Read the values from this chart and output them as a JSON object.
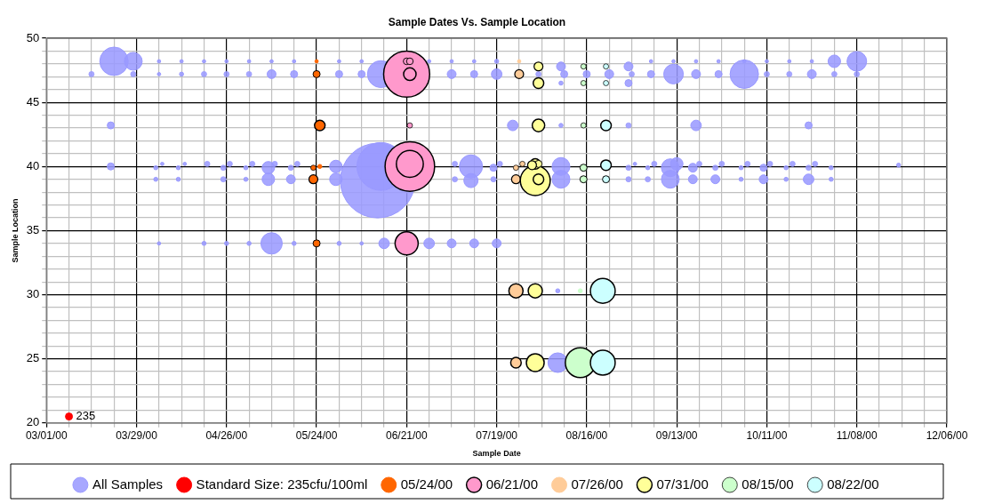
{
  "chart_data": {
    "type": "bubble",
    "title": "Sample Dates Vs. Sample Location",
    "xlabel": "Sample Date",
    "ylabel": "Sample Location",
    "xlim": [
      "2000-03-01",
      "2000-12-06"
    ],
    "xticks": [
      {
        "value": "2000-03-01",
        "label": "03/01/00"
      },
      {
        "value": "2000-03-08",
        "label": null
      },
      {
        "value": "2000-03-15",
        "label": null
      },
      {
        "value": "2000-03-22",
        "label": null
      },
      {
        "value": "2000-03-29",
        "label": "03/29/00"
      },
      {
        "value": "2000-04-05",
        "label": null
      },
      {
        "value": "2000-04-12",
        "label": null
      },
      {
        "value": "2000-04-19",
        "label": null
      },
      {
        "value": "2000-04-26",
        "label": "04/26/00"
      },
      {
        "value": "2000-05-03",
        "label": null
      },
      {
        "value": "2000-05-10",
        "label": null
      },
      {
        "value": "2000-05-17",
        "label": null
      },
      {
        "value": "2000-05-24",
        "label": "05/24/00"
      },
      {
        "value": "2000-05-31",
        "label": null
      },
      {
        "value": "2000-06-07",
        "label": null
      },
      {
        "value": "2000-06-14",
        "label": null
      },
      {
        "value": "2000-06-21",
        "label": "06/21/00"
      },
      {
        "value": "2000-06-28",
        "label": null
      },
      {
        "value": "2000-07-05",
        "label": null
      },
      {
        "value": "2000-07-12",
        "label": null
      },
      {
        "value": "2000-07-19",
        "label": "07/19/00"
      },
      {
        "value": "2000-07-26",
        "label": null
      },
      {
        "value": "2000-08-02",
        "label": null
      },
      {
        "value": "2000-08-09",
        "label": null
      },
      {
        "value": "2000-08-16",
        "label": "08/16/00"
      },
      {
        "value": "2000-08-23",
        "label": null
      },
      {
        "value": "2000-08-30",
        "label": null
      },
      {
        "value": "2000-09-06",
        "label": null
      },
      {
        "value": "2000-09-13",
        "label": "09/13/00"
      },
      {
        "value": "2000-09-20",
        "label": null
      },
      {
        "value": "2000-09-27",
        "label": null
      },
      {
        "value": "2000-10-04",
        "label": null
      },
      {
        "value": "2000-10-11",
        "label": "10/11/00"
      },
      {
        "value": "2000-10-18",
        "label": null
      },
      {
        "value": "2000-10-25",
        "label": null
      },
      {
        "value": "2000-11-01",
        "label": null
      },
      {
        "value": "2000-11-08",
        "label": "11/08/00"
      },
      {
        "value": "2000-11-15",
        "label": null
      },
      {
        "value": "2000-11-22",
        "label": null
      },
      {
        "value": "2000-11-29",
        "label": null
      },
      {
        "value": "2000-12-06",
        "label": "12/06/00"
      }
    ],
    "ylim": [
      20,
      50
    ],
    "yticks": [
      20,
      {
        "value": 21,
        "label": null
      },
      {
        "value": 22,
        "label": null
      },
      {
        "value": 23,
        "label": null
      },
      {
        "value": 24,
        "label": null
      },
      25,
      {
        "value": 26,
        "label": null
      },
      {
        "value": 27,
        "label": null
      },
      {
        "value": 28,
        "label": null
      },
      {
        "value": 29,
        "label": null
      },
      30,
      {
        "value": 31,
        "label": null
      },
      {
        "value": 32,
        "label": null
      },
      {
        "value": 33,
        "label": null
      },
      {
        "value": 34,
        "label": null
      },
      35,
      {
        "value": 36,
        "label": null
      },
      {
        "value": 37,
        "label": null
      },
      {
        "value": 38,
        "label": null
      },
      {
        "value": 39,
        "label": null
      },
      40,
      {
        "value": 41,
        "label": null
      },
      {
        "value": 42,
        "label": null
      },
      {
        "value": 43,
        "label": null
      },
      {
        "value": 44,
        "label": null
      },
      45,
      {
        "value": 46,
        "label": null
      },
      {
        "value": 47,
        "label": null
      },
      {
        "value": 48,
        "label": null
      },
      {
        "value": 49,
        "label": null
      },
      50
    ],
    "grid": true,
    "legend": "bottom",
    "annotations": [
      {
        "text": "235",
        "x": "2000-03-08",
        "y": 20.5
      }
    ],
    "series": [
      {
        "name": "All Samples",
        "color": "#9999ff",
        "x": [
          "2000-06-12",
          "2000-06-13",
          "2000-03-22",
          "2000-03-28",
          "2000-04-05",
          "2000-04-12",
          "2000-04-19",
          "2000-04-26",
          "2000-05-03",
          "2000-05-10",
          "2000-05-17",
          "2000-05-31",
          "2000-06-07",
          "2000-06-28",
          "2000-07-05",
          "2000-07-12",
          "2000-07-19",
          "2000-09-05",
          "2000-09-12",
          "2000-09-19",
          "2000-09-26",
          "2000-10-04",
          "2000-10-11",
          "2000-10-18",
          "2000-10-25",
          "2000-11-01",
          "2000-11-08",
          "2000-03-15",
          "2000-03-28",
          "2000-04-05",
          "2000-04-12",
          "2000-04-19",
          "2000-04-26",
          "2000-05-03",
          "2000-05-10",
          "2000-05-17",
          "2000-05-31",
          "2000-06-07",
          "2000-06-13",
          "2000-07-05",
          "2000-07-12",
          "2000-07-19",
          "2000-08-01",
          "2000-08-09",
          "2000-08-16",
          "2000-08-23",
          "2000-08-30",
          "2000-09-05",
          "2000-09-12",
          "2000-09-19",
          "2000-09-26",
          "2000-10-04",
          "2000-10-11",
          "2000-10-18",
          "2000-10-25",
          "2000-11-01",
          "2000-11-08",
          "2000-08-08",
          "2000-08-29",
          "2000-08-08",
          "2000-08-29",
          "2000-03-21",
          "2000-07-24",
          "2000-08-08",
          "2000-08-29",
          "2000-09-19",
          "2000-10-24",
          "2000-03-21",
          "2000-05-30",
          "2000-07-11",
          "2000-08-08",
          "2000-11-21",
          "2000-04-04",
          "2000-04-11",
          "2000-04-25",
          "2000-05-02",
          "2000-05-09",
          "2000-05-16",
          "2000-07-18",
          "2000-08-29",
          "2000-09-04",
          "2000-09-11",
          "2000-09-18",
          "2000-09-25",
          "2000-10-03",
          "2000-10-10",
          "2000-10-17",
          "2000-10-24",
          "2000-10-31",
          "2000-04-06",
          "2000-04-13",
          "2000-04-20",
          "2000-04-27",
          "2000-05-04",
          "2000-05-11",
          "2000-05-18",
          "2000-07-06",
          "2000-07-20",
          "2000-08-31",
          "2000-09-06",
          "2000-09-13",
          "2000-09-20",
          "2000-09-27",
          "2000-10-05",
          "2000-10-12",
          "2000-10-19",
          "2000-10-26",
          "2000-04-04",
          "2000-04-11",
          "2000-04-25",
          "2000-05-02",
          "2000-05-09",
          "2000-05-16",
          "2000-05-30",
          "2000-07-06",
          "2000-07-11",
          "2000-07-18",
          "2000-08-08",
          "2000-08-29",
          "2000-09-04",
          "2000-09-11",
          "2000-09-18",
          "2000-09-25",
          "2000-10-03",
          "2000-10-10",
          "2000-10-17",
          "2000-10-24",
          "2000-10-31",
          "2000-04-05",
          "2000-04-19",
          "2000-04-26",
          "2000-05-03",
          "2000-05-10",
          "2000-05-17",
          "2000-05-31",
          "2000-06-07",
          "2000-06-14",
          "2000-06-28",
          "2000-07-05",
          "2000-07-12",
          "2000-07-19",
          "2000-08-07",
          "2000-08-07"
        ],
        "values": [
          38.9,
          40,
          48.2,
          48.2,
          48.2,
          48.2,
          48.2,
          48.2,
          48.2,
          48.2,
          48.2,
          48.2,
          48.2,
          48.2,
          48.2,
          48.2,
          48.2,
          48.2,
          48.2,
          48.2,
          48.2,
          48.2,
          48.2,
          48.2,
          48.2,
          48.2,
          48.2,
          47.2,
          47.2,
          47.2,
          47.2,
          47.2,
          47.2,
          47.2,
          47.2,
          47.2,
          47.2,
          47.2,
          47.2,
          47.2,
          47.2,
          47.2,
          47.2,
          47.2,
          47.2,
          47.2,
          47.2,
          47.2,
          47.2,
          47.2,
          47.2,
          47.2,
          47.2,
          47.2,
          47.2,
          47.2,
          47.2,
          47.8,
          47.8,
          46.5,
          46.5,
          43.2,
          43.2,
          43.2,
          43.2,
          43.2,
          43.2,
          40,
          40,
          40,
          40,
          40.1,
          39.9,
          39.9,
          39.9,
          39.9,
          39.9,
          39.9,
          39.9,
          39.9,
          39.9,
          39.9,
          39.9,
          39.9,
          39.9,
          39.9,
          39.9,
          39.9,
          39.9,
          40.2,
          40.2,
          40.2,
          40.2,
          40.2,
          40.2,
          40.2,
          40.2,
          40.2,
          40.2,
          40.2,
          40.2,
          40.2,
          40.2,
          40.2,
          40.2,
          40.2,
          40.2,
          39,
          39,
          39,
          39,
          39,
          39,
          39,
          39,
          38.9,
          39,
          39,
          39,
          39,
          39,
          39,
          39,
          39,
          39,
          39,
          39,
          39,
          34,
          34,
          34,
          34,
          34,
          34,
          34,
          34,
          34,
          34,
          34,
          34,
          34,
          30.3,
          24.7
        ],
        "sizes": [
          1,
          0.41,
          0.145,
          0.057,
          0.002,
          0.002,
          0.002,
          0.002,
          0.002,
          0.002,
          0.002,
          0.002,
          0.002,
          0.002,
          0.002,
          0.002,
          0.003,
          0.002,
          0.002,
          0.002,
          0.002,
          0.002,
          0.002,
          0.002,
          0.002,
          0.028,
          0.069,
          0.005,
          0.005,
          0.002,
          0.003,
          0.005,
          0.005,
          0.005,
          0.014,
          0.009,
          0.009,
          0.009,
          0.13,
          0.014,
          0.009,
          0.02,
          0.005,
          0.009,
          0.009,
          0.014,
          0.005,
          0.009,
          0.069,
          0.014,
          0.009,
          0.145,
          0.005,
          0.005,
          0.014,
          0.005,
          0.005,
          0.014,
          0.014,
          0.003,
          0.009,
          0.009,
          0.02,
          0.003,
          0.005,
          0.02,
          0.009,
          0.009,
          0.028,
          0.096,
          0.057,
          0.003,
          0.003,
          0.003,
          0.005,
          0.003,
          0.028,
          0.005,
          0.009,
          0.005,
          0.003,
          0.057,
          0.014,
          0.005,
          0.003,
          0.009,
          0.003,
          0.005,
          0.003,
          0.002,
          0.002,
          0.005,
          0.005,
          0.005,
          0.005,
          0.005,
          0.005,
          0.005,
          0.002,
          0.005,
          0.028,
          0.005,
          0.005,
          0.005,
          0.005,
          0.005,
          0.005,
          0.003,
          0.003,
          0.005,
          0.003,
          0.028,
          0.014,
          0.028,
          0.005,
          0.036,
          0.005,
          0.057,
          0.005,
          0.005,
          0.057,
          0.014,
          0.014,
          0.003,
          0.014,
          0.003,
          0.02,
          0.003,
          0.002,
          0.003,
          0.003,
          0.003,
          0.082,
          0.003,
          0.003,
          0.002,
          0.02,
          0.02,
          0.014,
          0.014,
          0.014,
          0.003,
          0.069
        ]
      },
      {
        "name": "Standard Size: 235cfu/100ml",
        "color": "#ff0000",
        "x": [
          "2000-03-08"
        ],
        "values": [
          20.5
        ],
        "sizes": [
          0.009
        ]
      },
      {
        "name": "05/24/00",
        "color": "#ff6600",
        "x": [
          "2000-05-24",
          "2000-05-24",
          "2000-05-25",
          "2000-05-23",
          "2000-05-25",
          "2000-05-23",
          "2000-05-24"
        ],
        "values": [
          48.2,
          47.2,
          43.2,
          39.9,
          40,
          39,
          34
        ],
        "sizes": [
          0.002,
          0.009,
          0.02,
          0.005,
          0.003,
          0.014,
          0.009
        ]
      },
      {
        "name": "06/21/00",
        "color": "#ff99cc",
        "x": [
          "2000-06-22",
          "2000-06-21",
          "2000-06-22",
          "2000-06-21",
          "2000-06-22",
          "2000-06-22",
          "2000-06-21",
          "2000-06-22"
        ],
        "values": [
          40,
          47.2,
          40.2,
          34,
          47.2,
          43.2,
          48.2,
          48.2
        ],
        "sizes": [
          0.44,
          0.38,
          0.13,
          0.096,
          0.028,
          0.005,
          0.008,
          0.008
        ]
      },
      {
        "name": "07/26/00",
        "color": "#ffcc99",
        "x": [
          "2000-07-26",
          "2000-07-26",
          "2000-07-25",
          "2000-07-27",
          "2000-07-25",
          "2000-07-25",
          "2000-07-25"
        ],
        "values": [
          48.2,
          47.2,
          39.9,
          40.2,
          39,
          30.3,
          24.7
        ],
        "sizes": [
          0.002,
          0.014,
          0.005,
          0.005,
          0.014,
          0.036,
          0.02
        ]
      },
      {
        "name": "07/31/00",
        "color": "#ffff99",
        "x": [
          "2000-07-31",
          "2000-08-01",
          "2000-08-01",
          "2000-08-01",
          "2000-07-31",
          "2000-08-01",
          "2000-07-30",
          "2000-08-01",
          "2000-07-31",
          "2000-07-31"
        ],
        "values": [
          38.9,
          47.8,
          46.5,
          43.2,
          40.2,
          40.2,
          40.1,
          39,
          30.3,
          24.7
        ],
        "sizes": [
          0.16,
          0.014,
          0.02,
          0.028,
          0.02,
          0.009,
          0.014,
          0.02,
          0.036,
          0.057
        ]
      },
      {
        "name": "08/15/00",
        "color": "#ccffcc",
        "x": [
          "2000-08-15",
          "2000-08-15",
          "2000-08-15",
          "2000-08-15",
          "2000-08-15",
          "2000-08-14",
          "2000-08-14"
        ],
        "values": [
          47.8,
          46.5,
          43.2,
          39.9,
          39,
          30.3,
          24.7
        ],
        "sizes": [
          0.005,
          0.005,
          0.005,
          0.009,
          0.009,
          0.003,
          0.16
        ]
      },
      {
        "name": "08/22/00",
        "color": "#ccffff",
        "x": [
          "2000-08-22",
          "2000-08-22",
          "2000-08-22",
          "2000-08-22",
          "2000-08-22",
          "2000-08-21",
          "2000-08-21"
        ],
        "values": [
          47.8,
          46.5,
          43.2,
          40.1,
          39,
          30.3,
          24.7
        ],
        "sizes": [
          0.005,
          0.005,
          0.02,
          0.02,
          0.009,
          0.11,
          0.11
        ]
      }
    ]
  }
}
